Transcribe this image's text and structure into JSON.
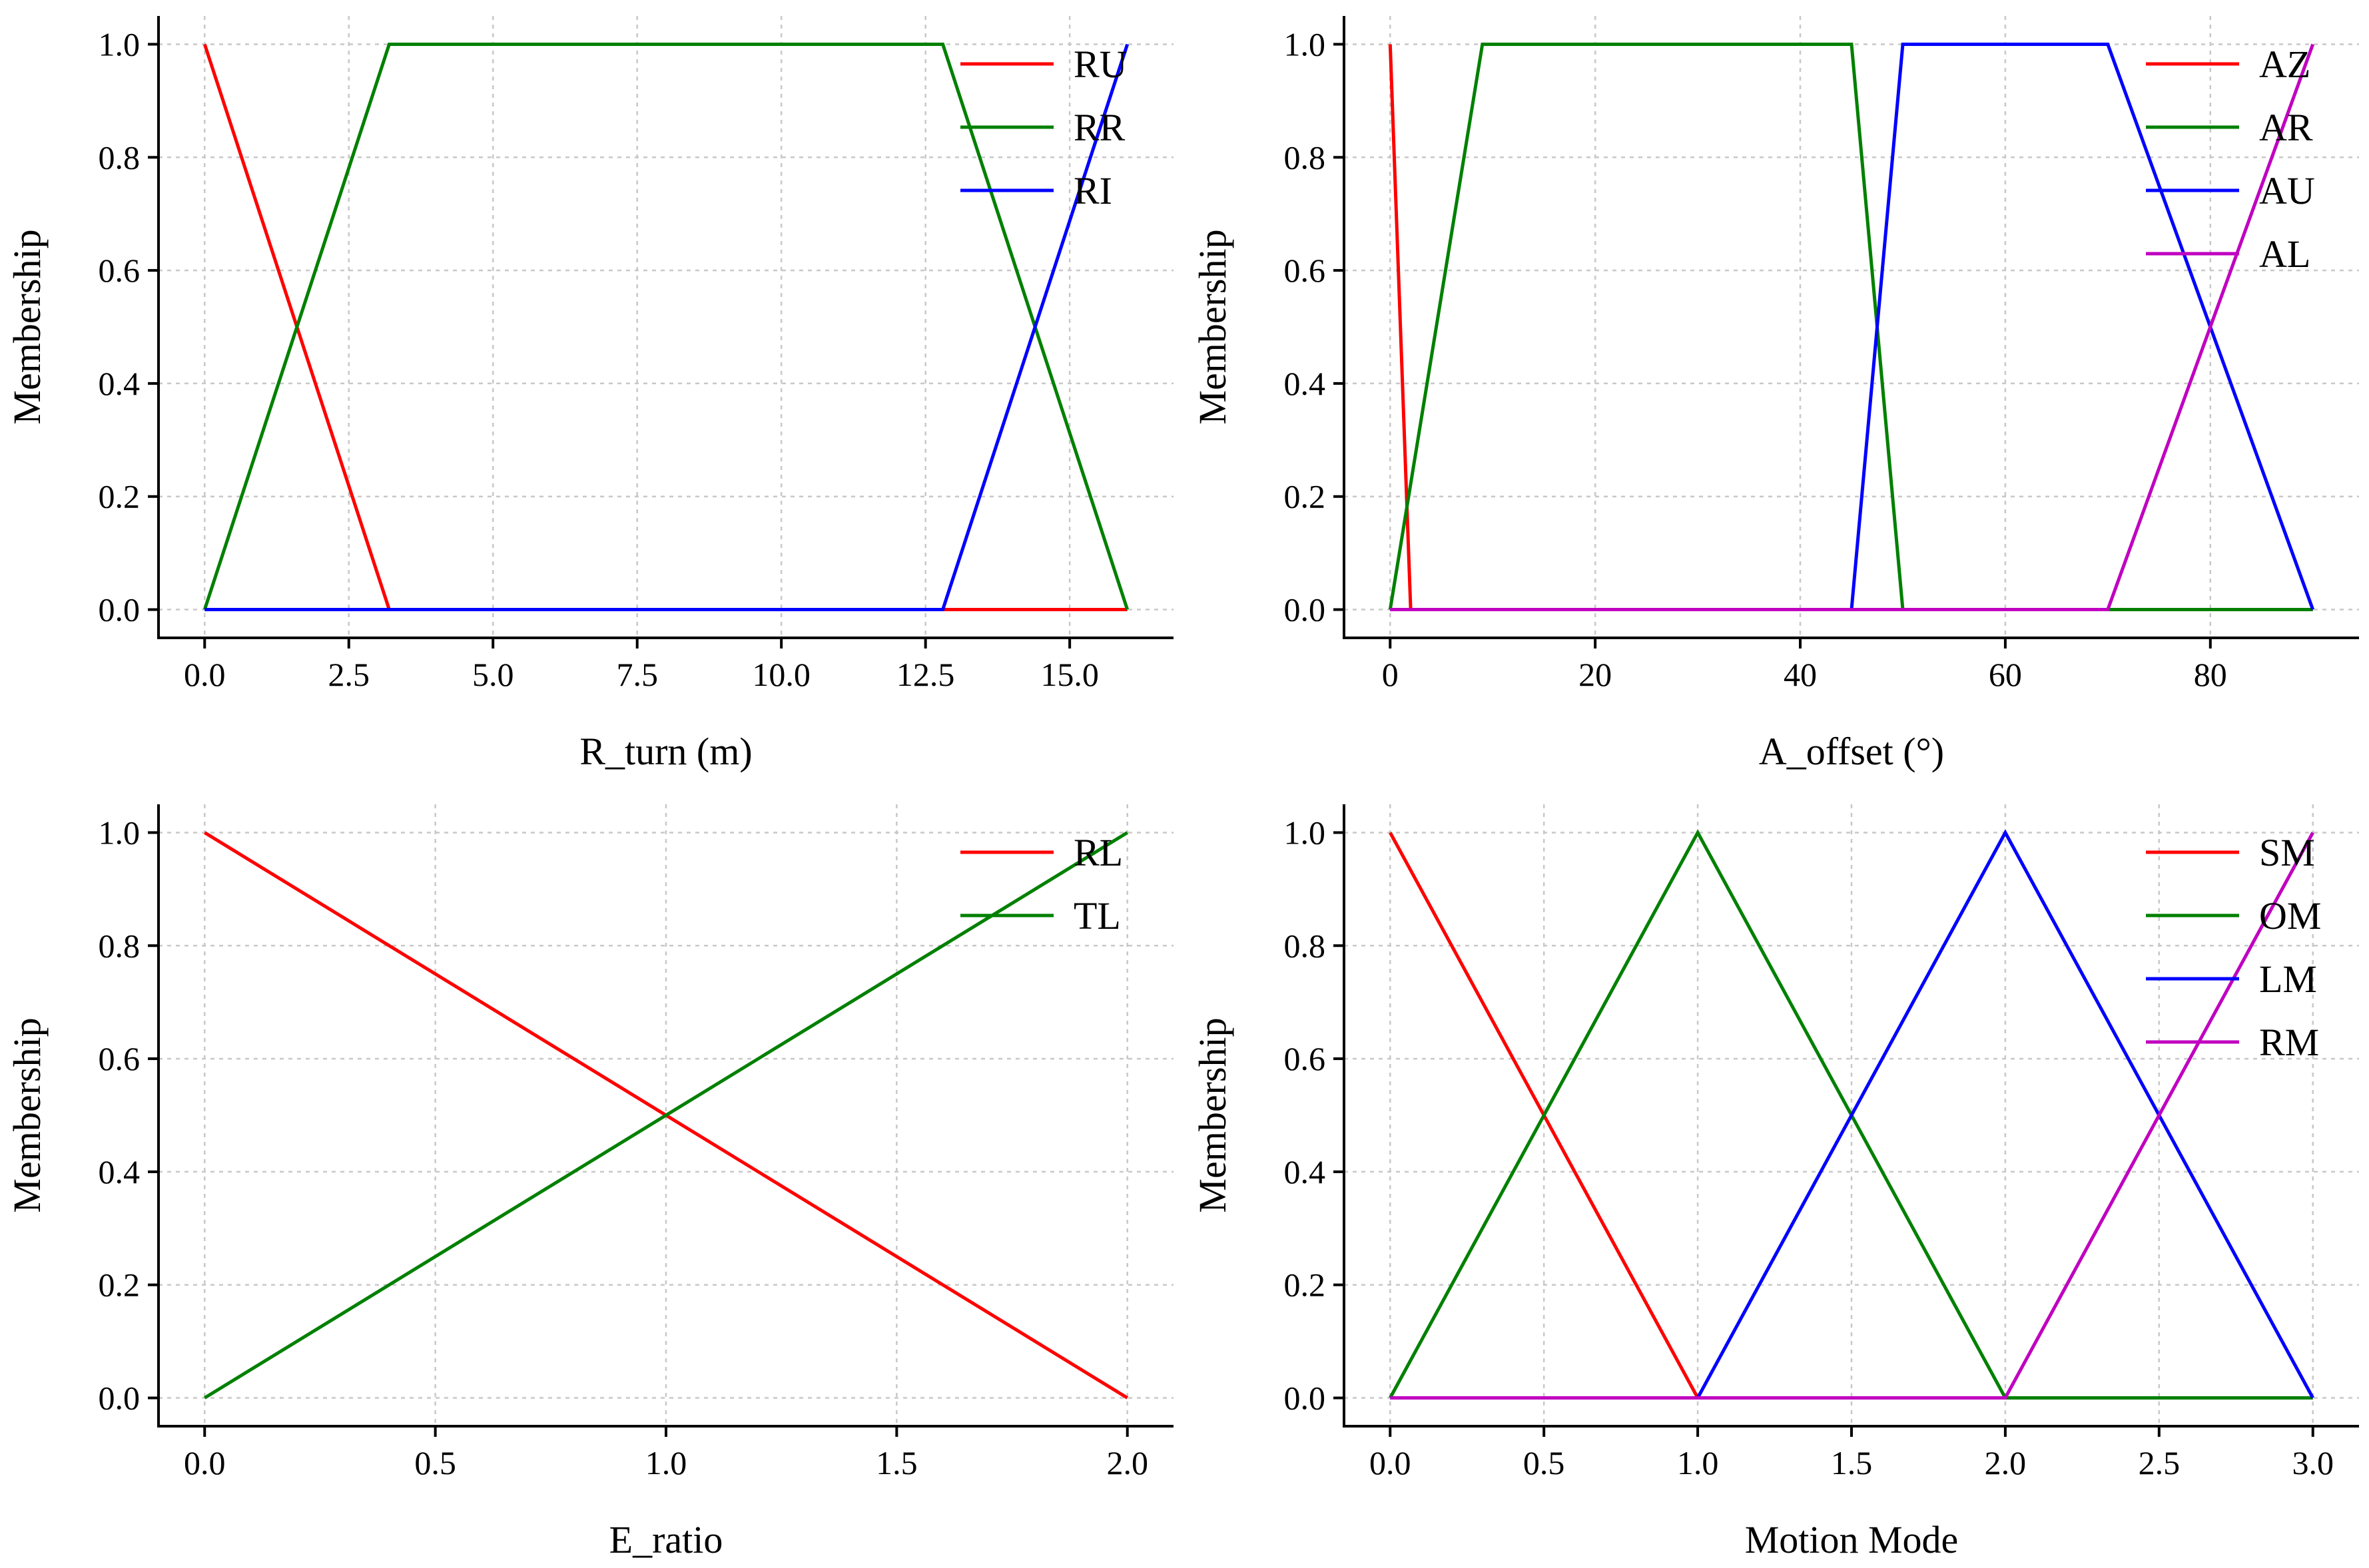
{
  "chart_data": [
    {
      "type": "line",
      "xlabel": "R_turn (m)",
      "ylabel": "Membership",
      "xlim": [
        -0.8,
        16.8
      ],
      "ylim": [
        -0.05,
        1.05
      ],
      "xticks": [
        0,
        2.5,
        5,
        7.5,
        10,
        12.5,
        15
      ],
      "xtick_labels": [
        "0.0",
        "2.5",
        "5.0",
        "7.5",
        "10.0",
        "12.5",
        "15.0"
      ],
      "yticks": [
        0,
        0.2,
        0.4,
        0.6,
        0.8,
        1
      ],
      "ytick_labels": [
        "0.0",
        "0.2",
        "0.4",
        "0.6",
        "0.8",
        "1.0"
      ],
      "grid": true,
      "legend_position": "top-right",
      "series": [
        {
          "name": "RU",
          "color": "#ff0000",
          "x": [
            0,
            3.2,
            12.8,
            16
          ],
          "y": [
            1,
            0,
            0,
            0
          ]
        },
        {
          "name": "RR",
          "color": "#008000",
          "x": [
            0,
            3.2,
            12.8,
            16
          ],
          "y": [
            0,
            1,
            1,
            0
          ]
        },
        {
          "name": "RI",
          "color": "#0000ff",
          "x": [
            0,
            3.2,
            12.8,
            16
          ],
          "y": [
            0,
            0,
            0,
            1
          ]
        }
      ]
    },
    {
      "type": "line",
      "xlabel": "A_offset (°)",
      "ylabel": "Membership",
      "xlim": [
        -4.5,
        94.5
      ],
      "ylim": [
        -0.05,
        1.05
      ],
      "xticks": [
        0,
        20,
        40,
        60,
        80
      ],
      "xtick_labels": [
        "0",
        "20",
        "40",
        "60",
        "80"
      ],
      "yticks": [
        0,
        0.2,
        0.4,
        0.6,
        0.8,
        1
      ],
      "ytick_labels": [
        "0.0",
        "0.2",
        "0.4",
        "0.6",
        "0.8",
        "1.0"
      ],
      "grid": true,
      "legend_position": "top-right",
      "series": [
        {
          "name": "AZ",
          "color": "#ff0000",
          "x": [
            0,
            2,
            90
          ],
          "y": [
            1,
            0,
            0
          ]
        },
        {
          "name": "AR",
          "color": "#008000",
          "x": [
            0,
            9,
            45,
            50,
            90
          ],
          "y": [
            0,
            1,
            1,
            0,
            0
          ]
        },
        {
          "name": "AU",
          "color": "#0000ff",
          "x": [
            0,
            45,
            50,
            70,
            90
          ],
          "y": [
            0,
            0,
            1,
            1,
            0
          ]
        },
        {
          "name": "AL",
          "color": "#c000c0",
          "x": [
            0,
            70,
            90
          ],
          "y": [
            0,
            0,
            1
          ]
        }
      ]
    },
    {
      "type": "line",
      "xlabel": "E_ratio",
      "ylabel": "Membership",
      "xlim": [
        -0.1,
        2.1
      ],
      "ylim": [
        -0.05,
        1.05
      ],
      "xticks": [
        0,
        0.5,
        1,
        1.5,
        2
      ],
      "xtick_labels": [
        "0.0",
        "0.5",
        "1.0",
        "1.5",
        "2.0"
      ],
      "yticks": [
        0,
        0.2,
        0.4,
        0.6,
        0.8,
        1
      ],
      "ytick_labels": [
        "0.0",
        "0.2",
        "0.4",
        "0.6",
        "0.8",
        "1.0"
      ],
      "grid": true,
      "legend_position": "top-right",
      "series": [
        {
          "name": "RL",
          "color": "#ff0000",
          "x": [
            0,
            2
          ],
          "y": [
            1,
            0
          ]
        },
        {
          "name": "TL",
          "color": "#008000",
          "x": [
            0,
            2
          ],
          "y": [
            0,
            1
          ]
        }
      ]
    },
    {
      "type": "line",
      "xlabel": "Motion Mode",
      "ylabel": "Membership",
      "xlim": [
        -0.15,
        3.15
      ],
      "ylim": [
        -0.05,
        1.05
      ],
      "xticks": [
        0,
        0.5,
        1,
        1.5,
        2,
        2.5,
        3
      ],
      "xtick_labels": [
        "0.0",
        "0.5",
        "1.0",
        "1.5",
        "2.0",
        "2.5",
        "3.0"
      ],
      "yticks": [
        0,
        0.2,
        0.4,
        0.6,
        0.8,
        1
      ],
      "ytick_labels": [
        "0.0",
        "0.2",
        "0.4",
        "0.6",
        "0.8",
        "1.0"
      ],
      "grid": true,
      "legend_position": "top-right",
      "series": [
        {
          "name": "SM",
          "color": "#ff0000",
          "x": [
            0,
            1,
            3
          ],
          "y": [
            1,
            0,
            0
          ]
        },
        {
          "name": "OM",
          "color": "#008000",
          "x": [
            0,
            1,
            2,
            3
          ],
          "y": [
            0,
            1,
            0,
            0
          ]
        },
        {
          "name": "LM",
          "color": "#0000ff",
          "x": [
            0,
            1,
            2,
            3
          ],
          "y": [
            0,
            0,
            1,
            0
          ]
        },
        {
          "name": "RM",
          "color": "#c000c0",
          "x": [
            0,
            2,
            3
          ],
          "y": [
            0,
            0,
            1
          ]
        }
      ]
    }
  ]
}
